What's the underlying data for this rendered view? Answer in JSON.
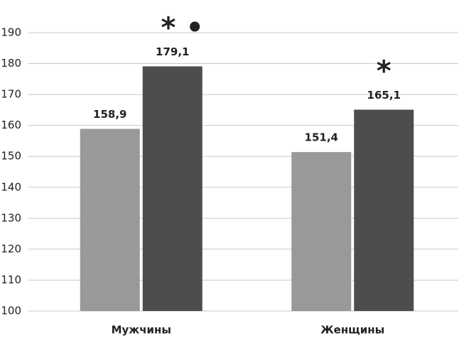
{
  "chart_data": {
    "type": "bar",
    "categories": [
      "Мужчины",
      "Женщины"
    ],
    "series": [
      {
        "color": "#999999",
        "values": [
          158.9,
          151.4
        ],
        "value_labels": [
          "158,9",
          "151,4"
        ]
      },
      {
        "color": "#4d4d4d",
        "values": [
          179.1,
          165.1
        ],
        "value_labels": [
          "179,1",
          "165,1"
        ],
        "annotations": [
          "* •",
          "*"
        ]
      }
    ],
    "ylim": [
      100,
      190
    ],
    "yticks": [
      100,
      110,
      120,
      130,
      140,
      150,
      160,
      170,
      180,
      190
    ],
    "grid": true
  }
}
